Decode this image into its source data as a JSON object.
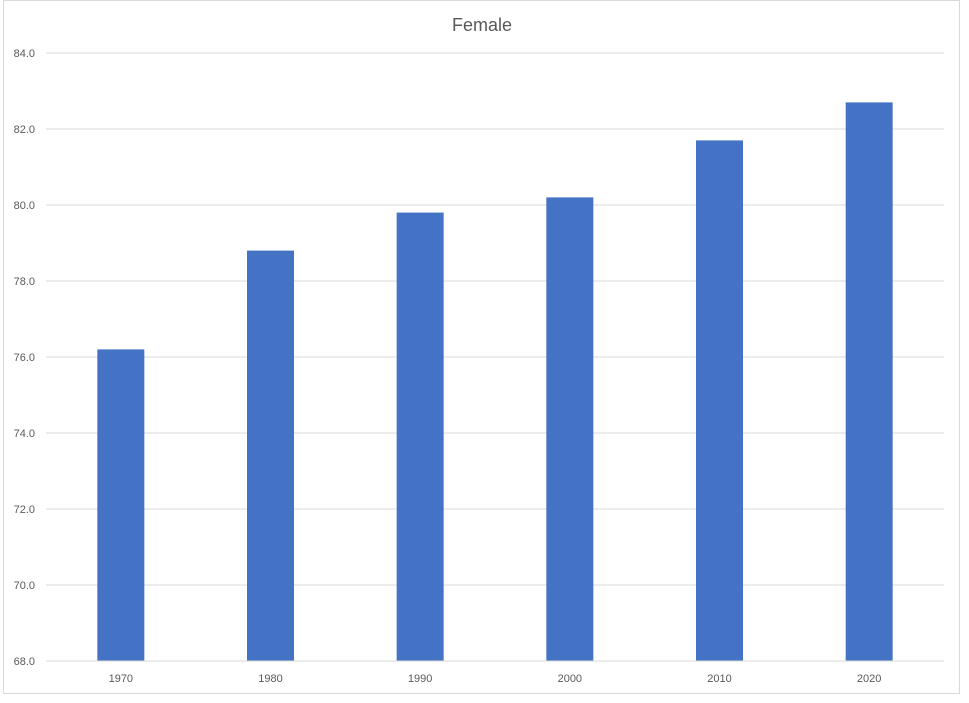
{
  "chart_data": {
    "type": "bar",
    "title": "Female",
    "xlabel": "",
    "ylabel": "",
    "categories": [
      "1970",
      "1980",
      "1990",
      "2000",
      "2010",
      "2020"
    ],
    "values": [
      76.2,
      78.8,
      79.8,
      80.2,
      81.7,
      82.7
    ],
    "ylim": [
      68.0,
      84.0
    ],
    "yticks": [
      "68.0",
      "70.0",
      "72.0",
      "74.0",
      "76.0",
      "78.0",
      "80.0",
      "82.0",
      "84.0"
    ],
    "grid": true,
    "legend": "none",
    "bar_color": "#4472C4",
    "grid_color": "#d9d9d9"
  }
}
